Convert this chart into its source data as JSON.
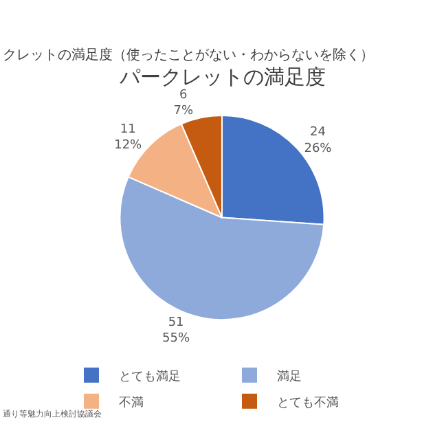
{
  "chart_data": {
    "type": "pie",
    "title": "パークレットの満足度",
    "subtitle": "クレットの満足度（使ったことがない・わからないを除く）",
    "categories": [
      "とても満足",
      "満足",
      "不満",
      "とても不満"
    ],
    "values": [
      24,
      51,
      11,
      6
    ],
    "value_labels": [
      "24\n26%",
      "51\n55%",
      "11\n12%",
      "6\n7%"
    ],
    "colors": [
      "#4472c4",
      "#8eaadb",
      "#f4b183",
      "#c55a11"
    ],
    "legend": "bottom",
    "annotations": [
      "通り等魅力向上検討協議会"
    ]
  }
}
